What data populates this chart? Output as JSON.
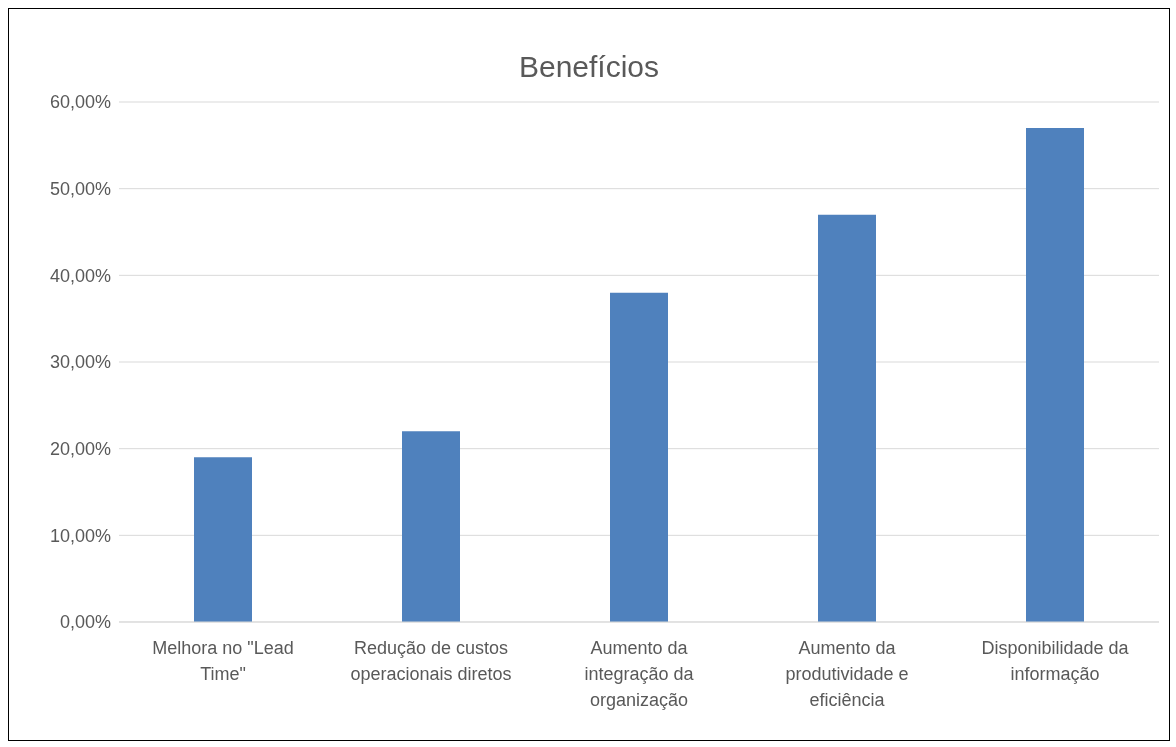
{
  "chart_data": {
    "type": "bar",
    "title": "Benefícios",
    "categories": [
      "Melhora no \"Lead Time\"",
      "Redução de custos operacionais diretos",
      "Aumento da integração da organização",
      "Aumento da produtividade e eficiência",
      "Disponibilidade da informação"
    ],
    "values": [
      19,
      22,
      38,
      47,
      57
    ],
    "color": "#4f81bd",
    "ylim": [
      0,
      60
    ],
    "yticks": [
      {
        "value": 0,
        "label": "0,00%"
      },
      {
        "value": 10,
        "label": "10,00%"
      },
      {
        "value": 20,
        "label": "20,00%"
      },
      {
        "value": 30,
        "label": "30,00%"
      },
      {
        "value": 40,
        "label": "40,00%"
      },
      {
        "value": 50,
        "label": "50,00%"
      },
      {
        "value": 60,
        "label": "60,00%"
      }
    ],
    "grid": "y",
    "legend": false
  }
}
